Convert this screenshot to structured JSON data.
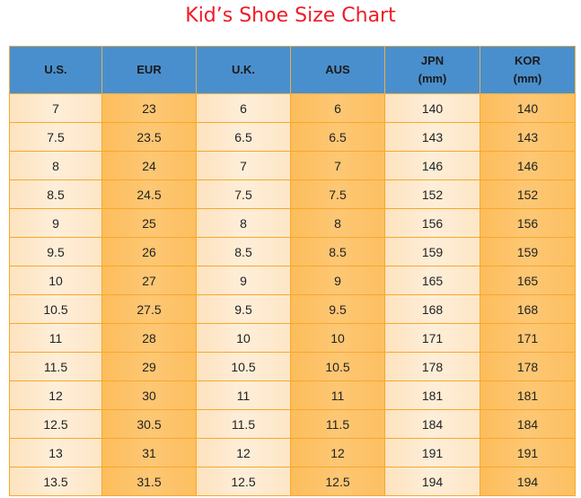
{
  "title": "Kid’s Shoe Size Chart",
  "colors": {
    "title": "#ee1c25",
    "header_bg": "#4a8fcd",
    "light_col_bg": "#feeed8",
    "dark_col_bg": "#fdc26a",
    "grid_line": "#f7a828"
  },
  "table": {
    "headers": [
      {
        "line1": "U.S.",
        "line2": ""
      },
      {
        "line1": "EUR",
        "line2": ""
      },
      {
        "line1": "U.K.",
        "line2": ""
      },
      {
        "line1": "AUS",
        "line2": ""
      },
      {
        "line1": "JPN",
        "line2": "(mm)"
      },
      {
        "line1": "KOR",
        "line2": "(mm)"
      }
    ],
    "rows": [
      [
        "7",
        "23",
        "6",
        "6",
        "140",
        "140"
      ],
      [
        "7.5",
        "23.5",
        "6.5",
        "6.5",
        "143",
        "143"
      ],
      [
        "8",
        "24",
        "7",
        "7",
        "146",
        "146"
      ],
      [
        "8.5",
        "24.5",
        "7.5",
        "7.5",
        "152",
        "152"
      ],
      [
        "9",
        "25",
        "8",
        "8",
        "156",
        "156"
      ],
      [
        "9.5",
        "26",
        "8.5",
        "8.5",
        "159",
        "159"
      ],
      [
        "10",
        "27",
        "9",
        "9",
        "165",
        "165"
      ],
      [
        "10.5",
        "27.5",
        "9.5",
        "9.5",
        "168",
        "168"
      ],
      [
        "11",
        "28",
        "10",
        "10",
        "171",
        "171"
      ],
      [
        "11.5",
        "29",
        "10.5",
        "10.5",
        "178",
        "178"
      ],
      [
        "12",
        "30",
        "11",
        "11",
        "181",
        "181"
      ],
      [
        "12.5",
        "30.5",
        "11.5",
        "11.5",
        "184",
        "184"
      ],
      [
        "13",
        "31",
        "12",
        "12",
        "191",
        "191"
      ],
      [
        "13.5",
        "31.5",
        "12.5",
        "12.5",
        "194",
        "194"
      ]
    ]
  }
}
